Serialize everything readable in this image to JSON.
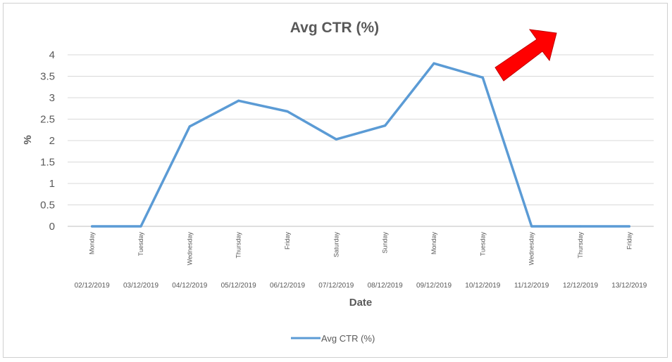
{
  "chart_data": {
    "type": "line",
    "title": "Avg CTR (%)",
    "xlabel": "Date",
    "ylabel": "%",
    "ylim": [
      0,
      4
    ],
    "yticks": [
      "0",
      "0.5",
      "1",
      "1.5",
      "2",
      "2.5",
      "3",
      "3.5",
      "4"
    ],
    "grid": true,
    "legend": "bottom",
    "days": [
      "Monday",
      "Tuesday",
      "Wednesday",
      "Thursday",
      "Friday",
      "Saturday",
      "Sunday",
      "Monday",
      "Tuesday",
      "Wednesday",
      "Thursday",
      "Friday"
    ],
    "categories": [
      "02/12/2019",
      "03/12/2019",
      "04/12/2019",
      "05/12/2019",
      "06/12/2019",
      "07/12/2019",
      "08/12/2019",
      "09/12/2019",
      "10/12/2019",
      "11/12/2019",
      "12/12/2019",
      "13/12/2019"
    ],
    "series": [
      {
        "name": "Avg CTR (%)",
        "color": "#5b9bd5",
        "values": [
          0,
          0,
          2.33,
          2.93,
          2.68,
          2.03,
          2.35,
          3.8,
          3.47,
          0,
          0,
          0
        ]
      }
    ]
  },
  "annotation": {
    "shape": "arrow-up-right",
    "color": "#ff0000"
  }
}
